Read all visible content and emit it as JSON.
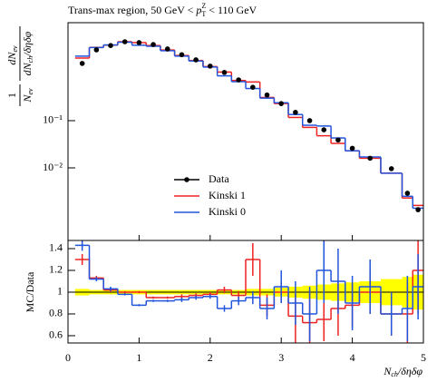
{
  "chart_data": {
    "type": "histogram",
    "title": [
      "Trans-max region, 50 GeV < ",
      "p",
      "T",
      "Z",
      " < 110 GeV"
    ],
    "xlabel": [
      "N",
      "ch",
      "/δηδφ"
    ],
    "ylabel": {
      "num1": "1",
      "den1": [
        "N",
        "ev"
      ],
      "num2": [
        "dN",
        "ev"
      ],
      "den2": [
        "dN",
        "ch",
        "/δηδφ"
      ]
    },
    "ratio_ylabel": "MC/Data",
    "bins": [
      0.1,
      0.3,
      0.5,
      0.7,
      0.9,
      1.1,
      1.3,
      1.5,
      1.7,
      1.9,
      2.1,
      2.3,
      2.5,
      2.7,
      2.9,
      3.1,
      3.3,
      3.5,
      3.7,
      3.9,
      4.1,
      4.4,
      4.7,
      4.85,
      5.0
    ],
    "xlim": [
      0,
      5
    ],
    "xticks": [
      0,
      1,
      2,
      3,
      4,
      5
    ],
    "ylim": [
      0.00029,
      11.9
    ],
    "log_y": true,
    "yticks": [
      {
        "value": 0.1,
        "label": "10⁻¹"
      },
      {
        "value": 0.01,
        "label": "10⁻²"
      }
    ],
    "data": {
      "name": "Data",
      "color": "#000000",
      "values": [
        1.63,
        3.16,
        3.9,
        4.7,
        4.5,
        4.1,
        3.3,
        2.5,
        1.94,
        1.43,
        1.05,
        0.73,
        0.51,
        0.35,
        0.23,
        0.15,
        0.1,
        0.064,
        0.039,
        0.026,
        0.016,
        0.0096,
        0.0029,
        0.0013
      ]
    },
    "series": [
      {
        "name": "Kinski 1",
        "color": "#ee2222",
        "values": [
          2.12,
          3.57,
          3.98,
          4.7,
          4.5,
          3.9,
          3.14,
          2.4,
          1.88,
          1.4,
          1.07,
          0.71,
          0.66,
          0.31,
          0.23,
          0.117,
          0.072,
          0.048,
          0.033,
          0.023,
          0.016,
          0.0077,
          0.0023,
          0.0016
        ],
        "ratio": [
          1.3,
          1.13,
          1.02,
          1.0,
          1.0,
          0.95,
          0.95,
          0.96,
          0.97,
          0.98,
          1.02,
          0.97,
          1.3,
          0.88,
          1.0,
          0.78,
          0.72,
          0.75,
          0.85,
          0.88,
          1.0,
          0.8,
          0.8,
          1.2
        ],
        "ratio_errors": [
          0.05,
          0.02,
          0.02,
          0.01,
          0.01,
          0.01,
          0.01,
          0.02,
          0.02,
          0.02,
          0.03,
          0.04,
          0.15,
          0.1,
          0.1,
          0.25,
          0.3,
          0.2,
          0.25,
          0.2,
          0.2,
          0.2,
          0.3,
          0.4
        ]
      },
      {
        "name": "Kinski 0",
        "color": "#2255dd",
        "values": [
          2.33,
          3.54,
          4.02,
          4.6,
          3.96,
          3.77,
          3.04,
          2.33,
          1.84,
          1.37,
          0.89,
          0.67,
          0.48,
          0.3,
          0.24,
          0.135,
          0.08,
          0.077,
          0.043,
          0.023,
          0.017,
          0.0077,
          0.0025,
          0.0014
        ],
        "ratio": [
          1.43,
          1.12,
          1.03,
          0.98,
          0.88,
          0.92,
          0.92,
          0.93,
          0.95,
          0.96,
          0.85,
          0.92,
          0.95,
          0.85,
          1.05,
          0.9,
          0.8,
          1.2,
          1.1,
          0.9,
          1.05,
          0.8,
          0.85,
          1.05
        ],
        "ratio_errors": [
          0.05,
          0.02,
          0.02,
          0.01,
          0.01,
          0.01,
          0.01,
          0.02,
          0.02,
          0.02,
          0.03,
          0.04,
          0.06,
          0.1,
          0.15,
          0.2,
          0.25,
          0.3,
          0.3,
          0.25,
          0.25,
          0.2,
          0.3,
          0.3
        ]
      }
    ],
    "ratio_band": [
      0.03,
      0.02,
      0.02,
      0.02,
      0.02,
      0.02,
      0.02,
      0.02,
      0.02,
      0.02,
      0.02,
      0.02,
      0.03,
      0.03,
      0.04,
      0.05,
      0.06,
      0.07,
      0.08,
      0.09,
      0.1,
      0.12,
      0.14,
      0.16
    ],
    "band_color": "#ffff00",
    "ratio_ylim": [
      0.533,
      1.475
    ],
    "ratio_yticks": [
      0.6,
      0.8,
      1,
      1.2,
      1.4
    ]
  }
}
